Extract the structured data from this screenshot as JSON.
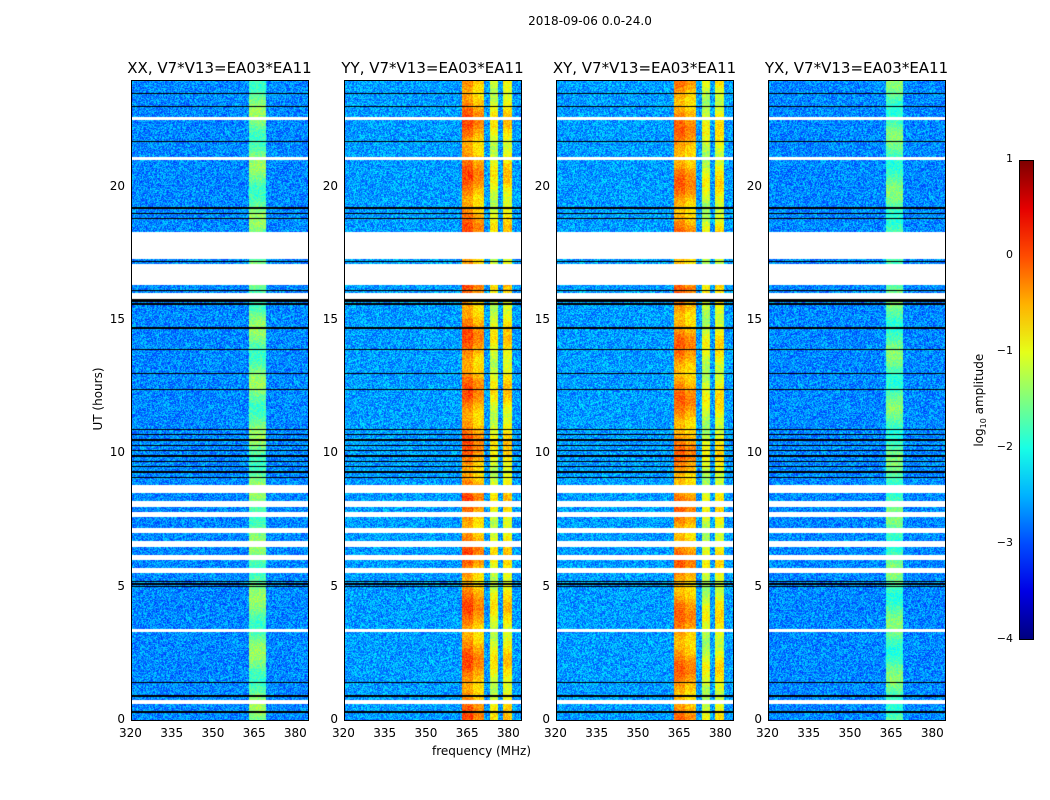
{
  "chart_data": {
    "type": "heatmap",
    "title": "2018-09-06 0.0-24.0",
    "xlabel": "frequency (MHz)",
    "ylabel": "UT (hours)",
    "xlim": [
      320,
      384.4
    ],
    "ylim": [
      0,
      24
    ],
    "xticks": [
      "320",
      "335",
      "350",
      "365",
      "380"
    ],
    "xtick_values": [
      320,
      335,
      350,
      365,
      380
    ],
    "yticks": [
      "0",
      "5",
      "10",
      "15",
      "20"
    ],
    "ytick_values": [
      0,
      5,
      10,
      15,
      20
    ],
    "panels": [
      {
        "title": "XX, V7*V13=EA03*EA11",
        "background_log_amp": -2.7,
        "rfi_bands": [
          {
            "mhz": [
              363,
              369
            ],
            "log_amp": -1.6
          }
        ]
      },
      {
        "title": "YY, V7*V13=EA03*EA11",
        "background_log_amp": -2.6,
        "rfi_bands": [
          {
            "mhz": [
              363,
              367
            ],
            "log_amp": -0.2
          },
          {
            "mhz": [
              367,
              371
            ],
            "log_amp": -0.5
          },
          {
            "mhz": [
              373,
              376
            ],
            "log_amp": -1.0
          },
          {
            "mhz": [
              378,
              381
            ],
            "log_amp": -0.8
          }
        ]
      },
      {
        "title": "XY, V7*V13=EA03*EA11",
        "background_log_amp": -2.6,
        "rfi_bands": [
          {
            "mhz": [
              363,
              367
            ],
            "log_amp": -0.3
          },
          {
            "mhz": [
              367,
              371
            ],
            "log_amp": -0.5
          },
          {
            "mhz": [
              373,
              376
            ],
            "log_amp": -1.1
          },
          {
            "mhz": [
              378,
              381
            ],
            "log_amp": -0.9
          }
        ]
      },
      {
        "title": "YX, V7*V13=EA03*EA11",
        "background_log_amp": -2.7,
        "rfi_bands": [
          {
            "mhz": [
              363,
              369
            ],
            "log_amp": -1.7
          }
        ]
      }
    ],
    "flagged_ut": [
      [
        15.8,
        16.0
      ],
      [
        16.3,
        17.1
      ],
      [
        17.3,
        18.3
      ],
      [
        5.5,
        5.7
      ],
      [
        6.0,
        6.2
      ],
      [
        6.5,
        6.7
      ],
      [
        7.0,
        7.2
      ],
      [
        7.6,
        7.8
      ],
      [
        8.0,
        8.2
      ],
      [
        8.5,
        8.8
      ],
      [
        0.6,
        0.75
      ],
      [
        3.3,
        3.4
      ],
      [
        22.5,
        22.6
      ],
      [
        21.0,
        21.1
      ]
    ],
    "dropout_ut": [
      0.3,
      0.9,
      1.4,
      5.0,
      5.1,
      5.2,
      9.1,
      9.3,
      9.5,
      9.7,
      9.9,
      10.1,
      10.3,
      10.5,
      10.7,
      10.9,
      12.4,
      13.0,
      13.9,
      14.7,
      15.6,
      15.7,
      15.75,
      16.1,
      17.2,
      18.8,
      19.0,
      19.2,
      21.7,
      23.0,
      23.5
    ],
    "colorbar": {
      "label": "log10 amplitude",
      "label_main": "log",
      "label_sub": "10",
      "label_rest": " amplitude",
      "range": [
        -4,
        1
      ],
      "ticks": [
        "1",
        "0",
        "−1",
        "−2",
        "−3",
        "−4"
      ],
      "tick_values": [
        1,
        0,
        -1,
        -2,
        -3,
        -4
      ],
      "colormap": "jet"
    }
  }
}
